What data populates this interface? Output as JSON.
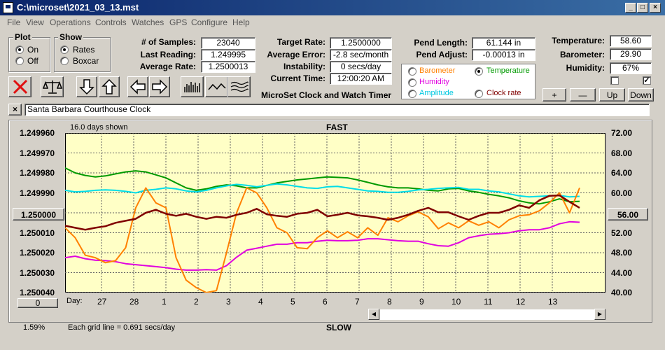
{
  "window": {
    "title": "C:\\microset\\2021_03_13.mst"
  },
  "menu": [
    "File",
    "View",
    "Operations",
    "Controls",
    "Watches",
    "GPS",
    "Configure",
    "Help"
  ],
  "plot_group": {
    "title": "Plot",
    "on_label": "On",
    "off_label": "Off",
    "selected": "On"
  },
  "show_group": {
    "title": "Show",
    "rates_label": "Rates",
    "boxcar_label": "Boxcar",
    "selected": "Rates"
  },
  "stats": {
    "samples_label": "# of Samples:",
    "samples": "23040",
    "last_reading_label": "Last Reading:",
    "last_reading": "1.249995",
    "average_rate_label": "Average Rate:",
    "average_rate": "1.2500013"
  },
  "rates": {
    "target_label": "Target Rate:",
    "target": "1.2500000",
    "avg_error_label": "Average Error:",
    "avg_error": "-2.8 sec/month",
    "instability_label": "Instability:",
    "instability": "0 secs/day",
    "current_time_label": "Current Time:",
    "current_time": "12:00:20 AM",
    "app_name": "MicroSet Clock and Watch Timer"
  },
  "pendulum": {
    "length_label": "Pend Length:",
    "length": "61.144 in",
    "adjust_label": "Pend Adjust:",
    "adjust": "-0.00013 in"
  },
  "series_options": [
    {
      "label": "Barometer",
      "color": "#ff8000",
      "selected": false
    },
    {
      "label": "Temperature",
      "color": "#009900",
      "selected": true
    },
    {
      "label": "Humidity",
      "color": "#e000e0",
      "selected": false
    },
    {
      "label": "Amplitude",
      "color": "#00c8e0",
      "selected": false
    },
    {
      "label": "Clock rate",
      "color": "#800000",
      "selected": false
    }
  ],
  "environment": {
    "temperature_label": "Temperature:",
    "temperature": "58.60",
    "barometer_label": "Barometer:",
    "barometer": "29.90",
    "humidity_label": "Humidity:",
    "humidity": "67%",
    "checkbox1_checked": false,
    "checkbox2_checked": true
  },
  "scale_buttons": {
    "plus": "+",
    "minus": "—",
    "up": "Up",
    "down": "Down"
  },
  "note": {
    "close": "×",
    "text": "Santa Barbara Courthouse Clock"
  },
  "chart_header": {
    "days_shown": "16.0 days shown",
    "top": "FAST",
    "bottom": "SLOW",
    "grid_note": "Each grid line = 0.691 secs/day",
    "left_value": "1.59%",
    "center_button": "1.250000",
    "right_button": "56.00",
    "zero_button": "0",
    "day_label": "Day:"
  },
  "chart_data": {
    "type": "line",
    "x_ticks": [
      "27",
      "28",
      "1",
      "2",
      "3",
      "4",
      "5",
      "6",
      "7",
      "8",
      "9",
      "10",
      "11",
      "12",
      "13"
    ],
    "y_left_ticks": [
      "1.249960",
      "1.249970",
      "1.249980",
      "1.249990",
      "1.250000",
      "1.250010",
      "1.250020",
      "1.250030",
      "1.250040"
    ],
    "y_right_ticks": [
      "72.00",
      "68.00",
      "64.00",
      "60.00",
      "56.00",
      "52.00",
      "48.00",
      "44.00",
      "40.00"
    ],
    "y_left_range": [
      1.25004,
      1.24996
    ],
    "y_right_range": [
      40,
      72
    ],
    "series": [
      {
        "color": "#009900",
        "values": [
          65,
          64,
          63.5,
          63.2,
          63.4,
          63.8,
          64.2,
          64.4,
          64.2,
          63.6,
          63,
          62,
          61,
          60.5,
          60.8,
          61.3,
          61.6,
          61.4,
          61,
          61,
          61.5,
          62,
          62.3,
          62.6,
          62.8,
          63,
          63.2,
          63.1,
          63,
          62.6,
          62.1,
          61.6,
          61.2,
          61,
          61,
          60.8,
          60.5,
          60.4,
          60.8,
          60.9,
          60.4,
          60.1,
          59.7,
          59.4,
          59,
          58.4,
          58,
          57.8,
          58.2,
          58.8,
          58.2,
          58.3
        ]
      },
      {
        "color": "#00dde8",
        "values": [
          60.5,
          60.2,
          60.3,
          60.5,
          60.6,
          60.5,
          60.3,
          60,
          60.5,
          60.7,
          61,
          60.8,
          60.4,
          60.2,
          60.5,
          61,
          61.4,
          61.7,
          61.5,
          61.2,
          61.5,
          61.8,
          61.6,
          61.3,
          61,
          60.9,
          61.2,
          61.3,
          61,
          60.7,
          60.4,
          60.3,
          60.1,
          60.1,
          60.3,
          60.6,
          60.7,
          60.9,
          61,
          61.1,
          60.7,
          60.7,
          60.4,
          60.2,
          59.8,
          59.4,
          59.2,
          59.3,
          59.4,
          59.5,
          59.2,
          59.3
        ]
      },
      {
        "color": "#e000e0",
        "values": [
          47,
          47.3,
          46.8,
          46.5,
          46.4,
          46.2,
          45.8,
          45.6,
          45.4,
          45.2,
          45,
          44.7,
          44.5,
          44.5,
          44.6,
          44.5,
          45.4,
          47.1,
          48.5,
          48.9,
          49.3,
          49.7,
          49.7,
          50,
          50,
          50.3,
          50.5,
          50.4,
          50.4,
          50.5,
          50.8,
          50.8,
          50.6,
          50.4,
          50.3,
          50.3,
          49.8,
          49.4,
          49.3,
          50,
          51,
          51.4,
          51.7,
          51.8,
          52,
          52.4,
          52.6,
          52.6,
          53,
          53.8,
          54.2,
          54.1
        ]
      },
      {
        "color": "#ff8000",
        "values": [
          53,
          51,
          47.5,
          47,
          46,
          46.4,
          49,
          57,
          61,
          58,
          57,
          47,
          42.5,
          41,
          40,
          40.4,
          48,
          56,
          61,
          60,
          57,
          53,
          52,
          49,
          48.8,
          51,
          52.4,
          51,
          52.2,
          51,
          53,
          51.5,
          55,
          54.2,
          55.4,
          56.2,
          55.2,
          52.8,
          54,
          53,
          54.4,
          53.5,
          54.2,
          53,
          54.6,
          55.4,
          55.6,
          56.4,
          58,
          60,
          56,
          61
        ]
      },
      {
        "color": "#800000",
        "values": [
          53.4,
          53,
          52.6,
          53,
          53.3,
          54,
          54.4,
          54.8,
          56,
          56.6,
          55.8,
          55.4,
          55.8,
          55.2,
          54.8,
          55.2,
          55,
          55.6,
          56,
          56.8,
          55.7,
          55.4,
          55.2,
          55.8,
          56,
          56.6,
          55.3,
          55.6,
          56,
          55.5,
          55.3,
          55,
          54.6,
          55,
          55.6,
          56.4,
          57,
          56.1,
          56.1,
          55.3,
          54.6,
          55.4,
          56,
          56,
          56.6,
          57.5,
          57,
          58.5,
          59.4,
          59.5,
          58.2,
          57
        ]
      }
    ],
    "grid": true,
    "legend": "top-right"
  }
}
